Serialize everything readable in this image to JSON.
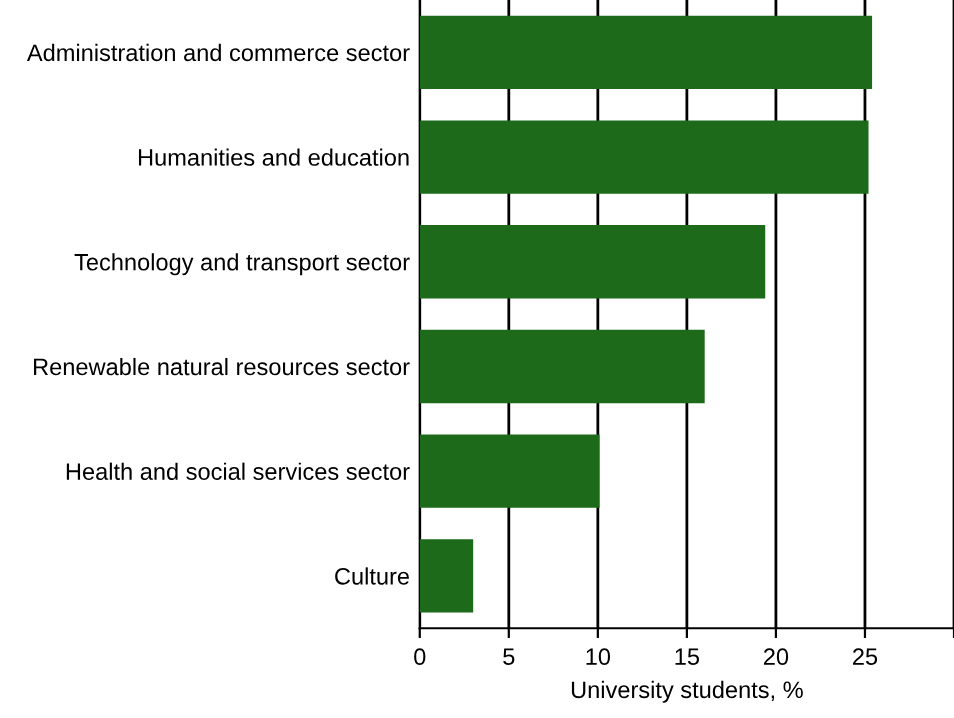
{
  "chart_data": {
    "type": "bar",
    "orientation": "horizontal",
    "xlabel": "University students, %",
    "categories": [
      "Administration and commerce sector",
      "Humanities and education",
      "Technology and transport sector",
      "Renewable natural resources sector",
      "Health and social services sector",
      "Culture"
    ],
    "values": [
      25.4,
      25.2,
      19.4,
      16.0,
      10.1,
      3.0
    ],
    "color": "#1d6b1a",
    "xlim": [
      0,
      30
    ],
    "xticks": [
      0,
      5,
      10,
      15,
      20,
      25,
      {
        "value": 30,
        "label": null
      }
    ],
    "grid": "x"
  }
}
